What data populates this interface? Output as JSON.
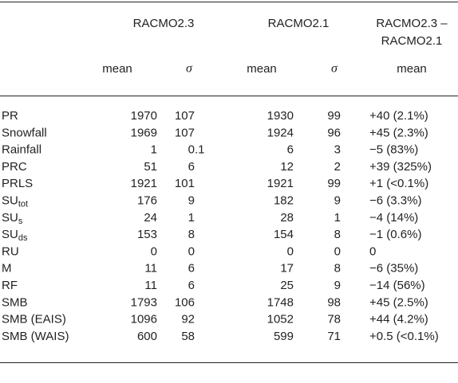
{
  "table": {
    "groups": [
      {
        "lines": [
          "RACMO2.3"
        ]
      },
      {
        "lines": [
          "RACMO2.1"
        ]
      },
      {
        "lines": [
          "RACMO2.3 –",
          "RACMO2.1"
        ]
      }
    ],
    "subheaders": [
      "mean",
      "σ",
      "mean",
      "σ",
      "mean"
    ],
    "rows": [
      {
        "label": "PR",
        "cells": [
          "1970",
          "107",
          "1930",
          "99",
          "+40 (2.1%)"
        ]
      },
      {
        "label": "Snowfall",
        "cells": [
          "1969",
          "107",
          "1924",
          "96",
          "+45 (2.3%)"
        ]
      },
      {
        "label": "Rainfall",
        "cells": [
          "1",
          "0.1",
          "6",
          "3",
          "−5 (83%)"
        ]
      },
      {
        "label": "PRC",
        "cells": [
          "51",
          "6",
          "12",
          "2",
          "+39 (325%)"
        ]
      },
      {
        "label": "PRLS",
        "cells": [
          "1921",
          "101",
          "1921",
          "99",
          "+1 (<0.1%)"
        ]
      },
      {
        "label": "SU",
        "sub": "tot",
        "cells": [
          "176",
          "9",
          "182",
          "9",
          "−6 (3.3%)"
        ]
      },
      {
        "label": "SU",
        "sub": "s",
        "cells": [
          "24",
          "1",
          "28",
          "1",
          "−4 (14%)"
        ]
      },
      {
        "label": "SU",
        "sub": "ds",
        "cells": [
          "153",
          "8",
          "154",
          "8",
          "−1 (0.6%)"
        ]
      },
      {
        "label": "RU",
        "cells": [
          "0",
          "0",
          "0",
          "0",
          "0"
        ]
      },
      {
        "label": "M",
        "cells": [
          "11",
          "6",
          "17",
          "8",
          "−6 (35%)"
        ]
      },
      {
        "label": "RF",
        "cells": [
          "11",
          "6",
          "25",
          "9",
          "−14 (56%)"
        ]
      },
      {
        "label": "SMB",
        "cells": [
          "1793",
          "106",
          "1748",
          "98",
          "+45 (2.5%)"
        ]
      },
      {
        "label": "SMB (EAIS)",
        "cells": [
          "1096",
          "92",
          "1052",
          "78",
          "+44 (4.2%)"
        ]
      },
      {
        "label": "SMB (WAIS)",
        "cells": [
          "600",
          "58",
          "599",
          "71",
          "+0.5 (<0.1%)"
        ]
      }
    ]
  }
}
